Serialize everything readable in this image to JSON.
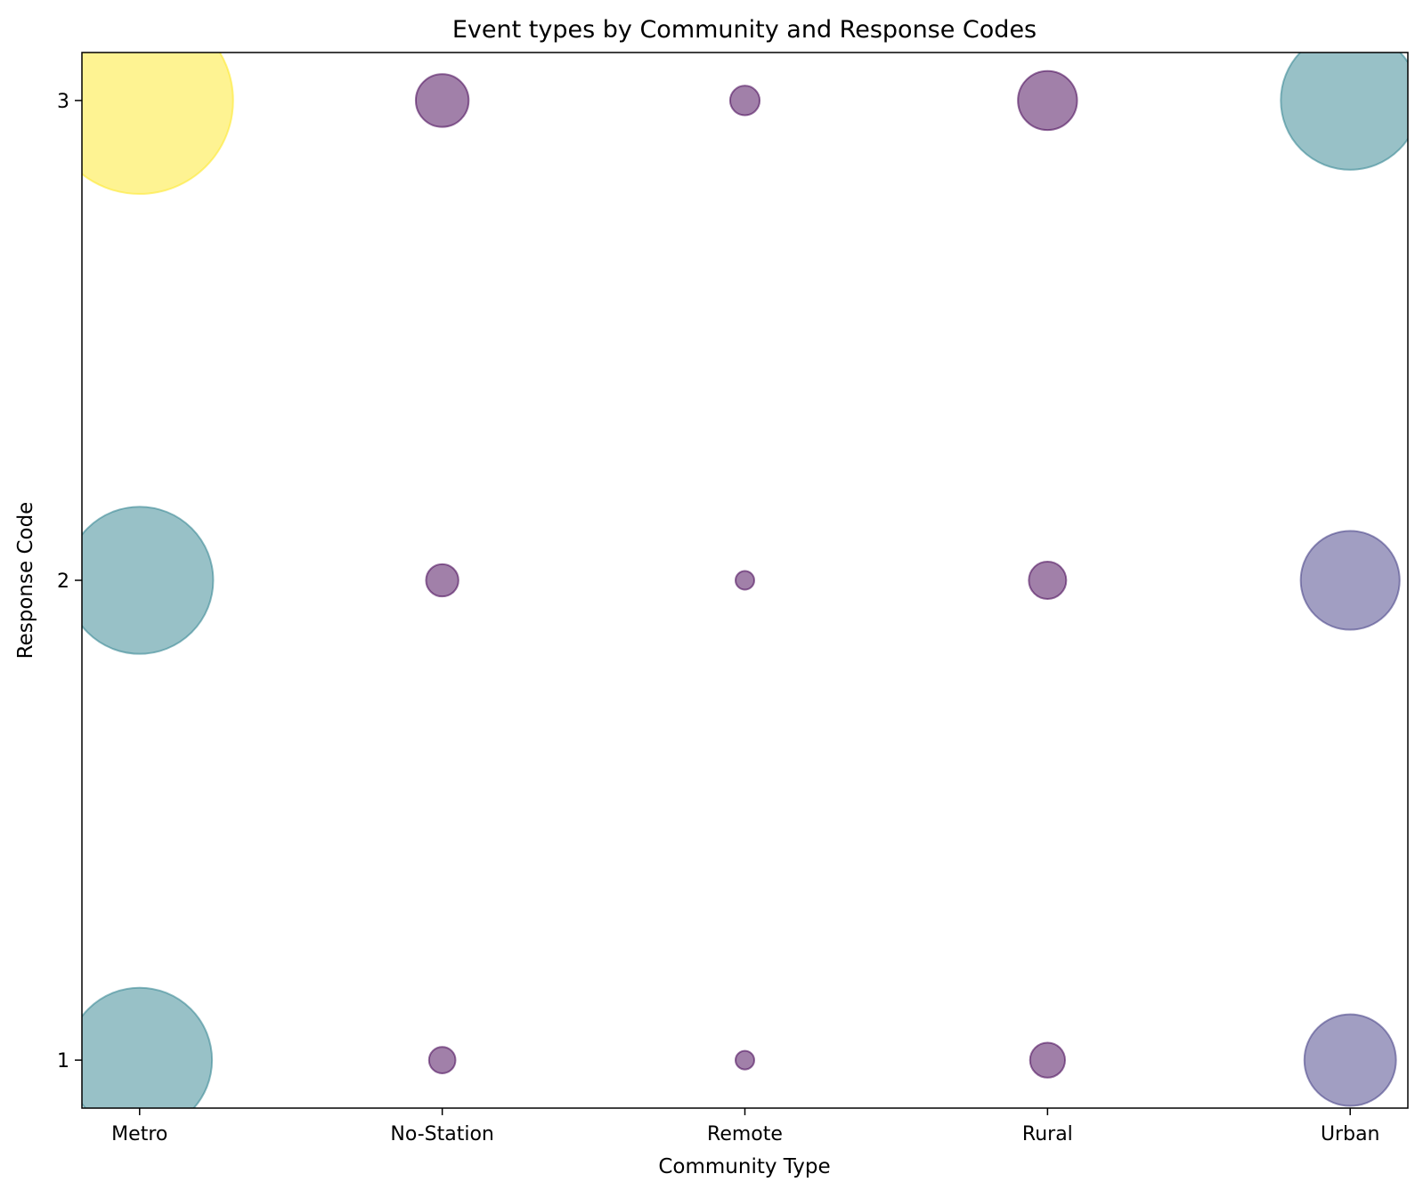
{
  "chart_data": {
    "type": "scatter",
    "title": "Event types by Community and Response Codes",
    "xlabel": "Community Type",
    "ylabel": "Response Code",
    "categories": [
      "Metro",
      "No-Station",
      "Remote",
      "Rural",
      "Urban"
    ],
    "y_ticks": [
      1,
      2,
      3
    ],
    "ylim": [
      0.9,
      3.1
    ],
    "grid": false,
    "legend": "none",
    "bubble_alpha": 0.5,
    "points": [
      {
        "x": "Metro",
        "y": 1,
        "size": 60,
        "color": "#31848f"
      },
      {
        "x": "Metro",
        "y": 2,
        "size": 62,
        "color": "#31848f"
      },
      {
        "x": "Metro",
        "y": 3,
        "size": 100,
        "color": "#fde725"
      },
      {
        "x": "No-Station",
        "y": 1,
        "size": 2,
        "color": "#440154"
      },
      {
        "x": "No-Station",
        "y": 2,
        "size": 3,
        "color": "#440154"
      },
      {
        "x": "No-Station",
        "y": 3,
        "size": 8,
        "color": "#440154"
      },
      {
        "x": "Remote",
        "y": 1,
        "size": 1,
        "color": "#440154"
      },
      {
        "x": "Remote",
        "y": 2,
        "size": 1,
        "color": "#440154"
      },
      {
        "x": "Remote",
        "y": 3,
        "size": 2.5,
        "color": "#440154"
      },
      {
        "x": "Rural",
        "y": 1,
        "size": 3.5,
        "color": "#440154"
      },
      {
        "x": "Rural",
        "y": 2,
        "size": 4,
        "color": "#440154"
      },
      {
        "x": "Rural",
        "y": 3,
        "size": 10,
        "color": "#440154"
      },
      {
        "x": "Urban",
        "y": 1,
        "size": 24,
        "color": "#433e85"
      },
      {
        "x": "Urban",
        "y": 2,
        "size": 28,
        "color": "#433e85"
      },
      {
        "x": "Urban",
        "y": 3,
        "size": 55,
        "color": "#31848f"
      }
    ]
  }
}
